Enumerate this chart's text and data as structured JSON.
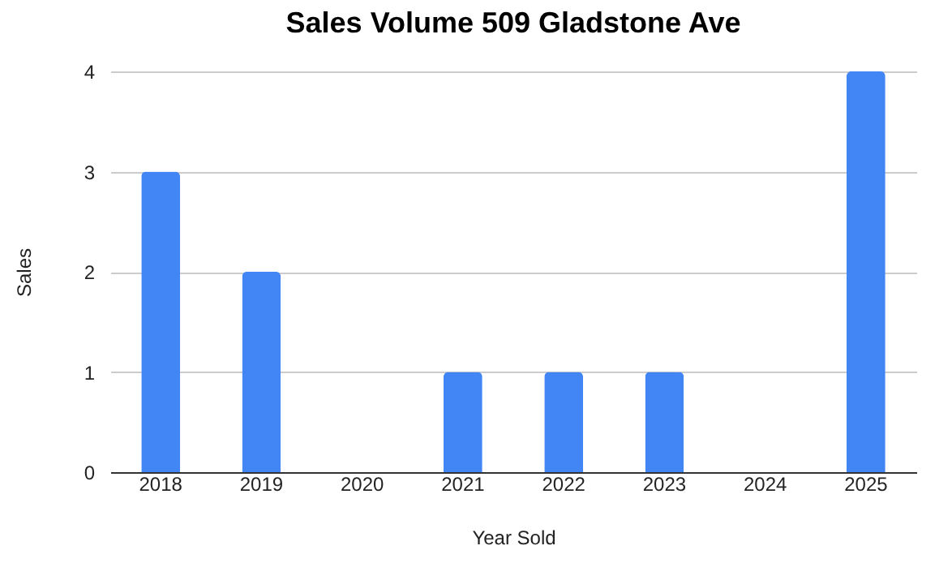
{
  "chart_data": {
    "type": "bar",
    "title": "Sales Volume 509 Gladstone Ave",
    "xlabel": "Year Sold",
    "ylabel": "Sales",
    "categories": [
      "2018",
      "2019",
      "2020",
      "2021",
      "2022",
      "2023",
      "2024",
      "2025"
    ],
    "values": [
      3,
      2,
      0,
      1,
      1,
      1,
      0,
      4
    ],
    "color": "#4285f4",
    "ylim": [
      0,
      4
    ],
    "yticks": [
      0,
      1,
      2,
      3,
      4
    ],
    "grid": "y"
  }
}
